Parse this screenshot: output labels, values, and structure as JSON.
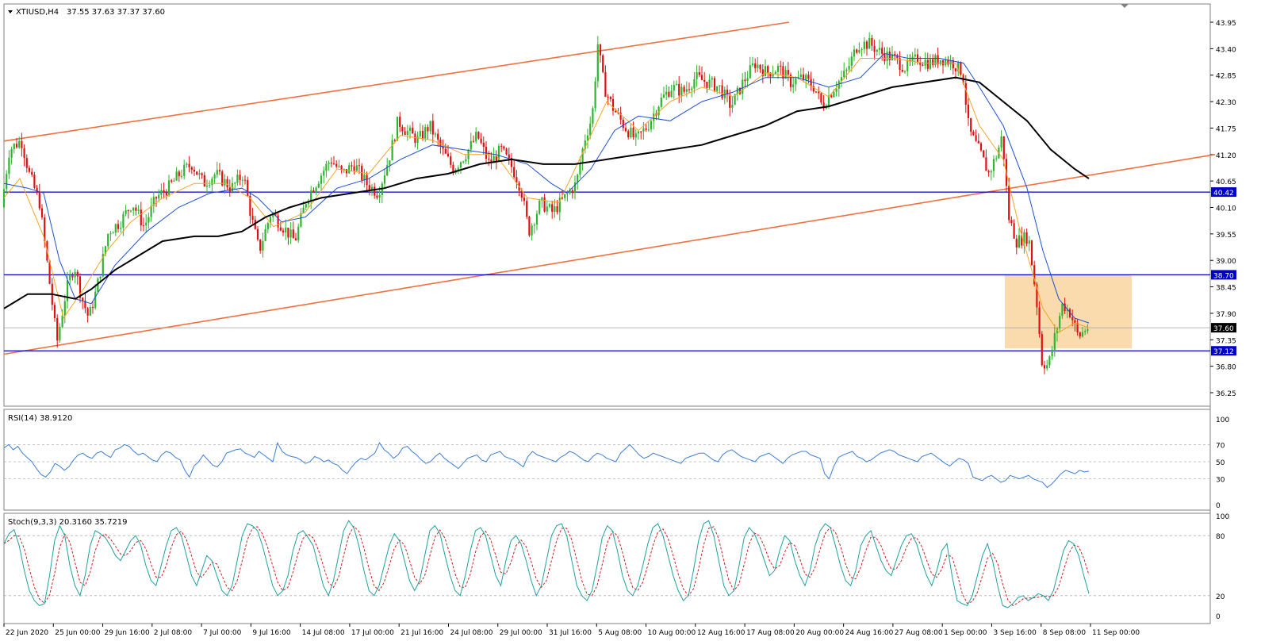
{
  "symbol_label": "XTIUSD,H4",
  "ohlc_label": "37.55 37.63 37.37 37.60",
  "price_axis": {
    "min": 36.25,
    "max": 43.95,
    "ticks": [
      "43.95",
      "43.40",
      "42.85",
      "42.30",
      "41.75",
      "41.20",
      "40.65",
      "40.10",
      "39.55",
      "39.00",
      "38.45",
      "37.90",
      "37.35",
      "36.80",
      "36.25"
    ]
  },
  "levels": [
    {
      "name": "resistance-upper",
      "value": 40.42,
      "label": "40.42",
      "color": "#0000cc"
    },
    {
      "name": "resistance-lower",
      "value": 38.7,
      "label": "38.70",
      "color": "#0000cc"
    },
    {
      "name": "support",
      "value": 37.12,
      "label": "37.12",
      "color": "#0000cc"
    }
  ],
  "current_price": {
    "value": 37.6,
    "label": "37.60"
  },
  "rsi": {
    "label": "RSI(14) 38.9120",
    "ticks": [
      "100",
      "70",
      "50",
      "30",
      "0"
    ]
  },
  "stoch": {
    "label": "Stoch(9,3,3) 20.3160 35.7219",
    "ticks": [
      "100",
      "80",
      "20",
      "0"
    ]
  },
  "time_axis": [
    "22 Jun 2020",
    "25 Jun 00:00",
    "29 Jun 16:00",
    "2 Jul 08:00",
    "7 Jul 00:00",
    "9 Jul 16:00",
    "14 Jul 08:00",
    "17 Jul 00:00",
    "21 Jul 16:00",
    "24 Jul 08:00",
    "29 Jul 00:00",
    "31 Jul 16:00",
    "5 Aug 08:00",
    "10 Aug 00:00",
    "12 Aug 16:00",
    "17 Aug 08:00",
    "20 Aug 00:00",
    "24 Aug 16:00",
    "27 Aug 08:00",
    "1 Sep 00:00",
    "3 Sep 16:00",
    "8 Sep 08:00",
    "11 Sep 00:00"
  ],
  "colors": {
    "bull": "#2db52d",
    "bear": "#e01010",
    "ma_fast": "#f5a623",
    "ma_mid": "#1f4fd8",
    "ma_slow": "#000000",
    "channel": "#f07040",
    "level": "#0000cc",
    "zone": "#f8d5a0",
    "rsi_line": "#3b7fd6",
    "stoch_main": "#20a0a0",
    "stoch_signal": "#d02020"
  },
  "chart_data": {
    "type": "line",
    "price_path": [
      [
        0,
        40.1
      ],
      [
        10,
        41.3
      ],
      [
        25,
        41.5
      ],
      [
        35,
        40.8
      ],
      [
        48,
        40.2
      ],
      [
        58,
        38.9
      ],
      [
        70,
        37.3
      ],
      [
        82,
        38.4
      ],
      [
        92,
        38.9
      ],
      [
        100,
        38.3
      ],
      [
        110,
        37.8
      ],
      [
        120,
        38.4
      ],
      [
        135,
        39.6
      ],
      [
        150,
        39.8
      ],
      [
        165,
        40.2
      ],
      [
        180,
        39.7
      ],
      [
        195,
        40.3
      ],
      [
        210,
        40.5
      ],
      [
        225,
        40.8
      ],
      [
        240,
        41.0
      ],
      [
        255,
        40.6
      ],
      [
        270,
        40.8
      ],
      [
        290,
        40.5
      ],
      [
        305,
        40.8
      ],
      [
        315,
        39.9
      ],
      [
        325,
        39.2
      ],
      [
        340,
        40.0
      ],
      [
        355,
        39.7
      ],
      [
        370,
        39.4
      ],
      [
        385,
        40.3
      ],
      [
        400,
        40.7
      ],
      [
        415,
        41.1
      ],
      [
        430,
        40.8
      ],
      [
        445,
        41.0
      ],
      [
        460,
        40.6
      ],
      [
        475,
        40.4
      ],
      [
        490,
        41.2
      ],
      [
        500,
        41.9
      ],
      [
        510,
        41.7
      ],
      [
        525,
        41.5
      ],
      [
        540,
        41.8
      ],
      [
        555,
        41.3
      ],
      [
        570,
        40.9
      ],
      [
        585,
        41.2
      ],
      [
        600,
        41.6
      ],
      [
        615,
        41.0
      ],
      [
        630,
        41.3
      ],
      [
        645,
        40.9
      ],
      [
        655,
        40.5
      ],
      [
        665,
        39.6
      ],
      [
        680,
        40.2
      ],
      [
        695,
        40.0
      ],
      [
        710,
        40.3
      ],
      [
        725,
        40.6
      ],
      [
        735,
        41.5
      ],
      [
        745,
        42.0
      ],
      [
        752,
        43.5
      ],
      [
        760,
        42.6
      ],
      [
        770,
        42.2
      ],
      [
        785,
        41.8
      ],
      [
        800,
        41.5
      ],
      [
        815,
        41.8
      ],
      [
        830,
        42.3
      ],
      [
        845,
        42.6
      ],
      [
        860,
        42.5
      ],
      [
        875,
        42.8
      ],
      [
        890,
        42.7
      ],
      [
        905,
        42.6
      ],
      [
        920,
        42.2
      ],
      [
        935,
        42.7
      ],
      [
        950,
        43.1
      ],
      [
        965,
        42.9
      ],
      [
        980,
        43.0
      ],
      [
        995,
        42.7
      ],
      [
        1010,
        42.8
      ],
      [
        1025,
        42.6
      ],
      [
        1035,
        42.2
      ],
      [
        1050,
        42.6
      ],
      [
        1065,
        42.9
      ],
      [
        1080,
        43.5
      ],
      [
        1095,
        43.5
      ],
      [
        1110,
        43.3
      ],
      [
        1125,
        43.2
      ],
      [
        1140,
        43.0
      ],
      [
        1155,
        43.2
      ],
      [
        1170,
        43.1
      ],
      [
        1185,
        43.2
      ],
      [
        1200,
        43.1
      ],
      [
        1212,
        42.9
      ],
      [
        1220,
        41.7
      ],
      [
        1235,
        41.2
      ],
      [
        1245,
        40.8
      ],
      [
        1255,
        41.2
      ],
      [
        1262,
        41.6
      ],
      [
        1270,
        39.9
      ],
      [
        1280,
        39.4
      ],
      [
        1295,
        39.5
      ],
      [
        1305,
        38.2
      ],
      [
        1312,
        36.9
      ],
      [
        1320,
        36.8
      ],
      [
        1328,
        37.4
      ],
      [
        1338,
        38.1
      ],
      [
        1348,
        37.9
      ],
      [
        1358,
        37.4
      ],
      [
        1368,
        37.6
      ]
    ],
    "ma_fast": [
      [
        0,
        40.3
      ],
      [
        20,
        40.7
      ],
      [
        50,
        39.5
      ],
      [
        75,
        37.8
      ],
      [
        100,
        38.4
      ],
      [
        130,
        39.2
      ],
      [
        160,
        39.8
      ],
      [
        200,
        40.3
      ],
      [
        240,
        40.6
      ],
      [
        280,
        40.6
      ],
      [
        310,
        40.3
      ],
      [
        340,
        39.7
      ],
      [
        380,
        40.0
      ],
      [
        420,
        40.9
      ],
      [
        460,
        40.8
      ],
      [
        500,
        41.6
      ],
      [
        540,
        41.5
      ],
      [
        580,
        41.2
      ],
      [
        620,
        41.2
      ],
      [
        660,
        40.3
      ],
      [
        700,
        40.2
      ],
      [
        740,
        41.6
      ],
      [
        760,
        42.3
      ],
      [
        800,
        41.7
      ],
      [
        840,
        42.3
      ],
      [
        880,
        42.6
      ],
      [
        920,
        42.4
      ],
      [
        960,
        42.9
      ],
      [
        1000,
        42.8
      ],
      [
        1040,
        42.4
      ],
      [
        1080,
        43.2
      ],
      [
        1120,
        43.2
      ],
      [
        1160,
        43.1
      ],
      [
        1200,
        43.1
      ],
      [
        1230,
        41.8
      ],
      [
        1260,
        41.1
      ],
      [
        1280,
        39.7
      ],
      [
        1310,
        38.0
      ],
      [
        1330,
        37.5
      ],
      [
        1350,
        37.7
      ],
      [
        1368,
        37.6
      ]
    ],
    "ma_mid": [
      [
        0,
        40.6
      ],
      [
        30,
        40.5
      ],
      [
        50,
        40.4
      ],
      [
        70,
        39.0
      ],
      [
        90,
        38.2
      ],
      [
        110,
        38.1
      ],
      [
        140,
        38.9
      ],
      [
        180,
        39.6
      ],
      [
        220,
        40.1
      ],
      [
        260,
        40.4
      ],
      [
        300,
        40.5
      ],
      [
        320,
        40.3
      ],
      [
        350,
        39.8
      ],
      [
        380,
        39.9
      ],
      [
        420,
        40.5
      ],
      [
        460,
        40.7
      ],
      [
        500,
        41.1
      ],
      [
        540,
        41.4
      ],
      [
        580,
        41.3
      ],
      [
        620,
        41.2
      ],
      [
        660,
        41.0
      ],
      [
        690,
        40.6
      ],
      [
        710,
        40.4
      ],
      [
        740,
        40.9
      ],
      [
        770,
        41.7
      ],
      [
        800,
        42.0
      ],
      [
        840,
        41.9
      ],
      [
        880,
        42.3
      ],
      [
        920,
        42.5
      ],
      [
        960,
        42.8
      ],
      [
        1000,
        42.8
      ],
      [
        1040,
        42.6
      ],
      [
        1080,
        42.8
      ],
      [
        1110,
        43.3
      ],
      [
        1140,
        43.2
      ],
      [
        1180,
        43.2
      ],
      [
        1210,
        43.1
      ],
      [
        1230,
        42.6
      ],
      [
        1260,
        41.8
      ],
      [
        1290,
        40.5
      ],
      [
        1310,
        39.2
      ],
      [
        1330,
        38.2
      ],
      [
        1350,
        37.8
      ],
      [
        1368,
        37.7
      ]
    ],
    "ma_slow": [
      [
        0,
        38.0
      ],
      [
        30,
        38.3
      ],
      [
        60,
        38.3
      ],
      [
        90,
        38.2
      ],
      [
        110,
        38.4
      ],
      [
        140,
        38.8
      ],
      [
        170,
        39.1
      ],
      [
        200,
        39.4
      ],
      [
        240,
        39.5
      ],
      [
        270,
        39.5
      ],
      [
        300,
        39.6
      ],
      [
        330,
        39.9
      ],
      [
        360,
        40.1
      ],
      [
        400,
        40.3
      ],
      [
        440,
        40.4
      ],
      [
        480,
        40.5
      ],
      [
        520,
        40.7
      ],
      [
        560,
        40.8
      ],
      [
        600,
        41.0
      ],
      [
        640,
        41.1
      ],
      [
        680,
        41.0
      ],
      [
        720,
        41.0
      ],
      [
        760,
        41.1
      ],
      [
        800,
        41.2
      ],
      [
        840,
        41.3
      ],
      [
        880,
        41.4
      ],
      [
        920,
        41.6
      ],
      [
        960,
        41.8
      ],
      [
        1000,
        42.1
      ],
      [
        1040,
        42.2
      ],
      [
        1080,
        42.4
      ],
      [
        1120,
        42.6
      ],
      [
        1160,
        42.7
      ],
      [
        1200,
        42.8
      ],
      [
        1230,
        42.7
      ],
      [
        1260,
        42.3
      ],
      [
        1290,
        41.9
      ],
      [
        1320,
        41.3
      ],
      [
        1350,
        40.9
      ],
      [
        1368,
        40.7
      ]
    ],
    "channel_upper": [
      [
        0,
        41.48
      ],
      [
        990,
        43.95
      ]
    ],
    "channel_lower": [
      [
        0,
        37.05
      ],
      [
        1527,
        41.2
      ]
    ],
    "zone": {
      "x_start": 1262,
      "x_end": 1422,
      "top": 38.7,
      "bottom": 37.17
    },
    "rsi_values": [
      66,
      70,
      64,
      68,
      60,
      55,
      50,
      42,
      35,
      32,
      38,
      48,
      45,
      40,
      44,
      52,
      58,
      60,
      56,
      54,
      60,
      62,
      58,
      55,
      64,
      66,
      70,
      68,
      62,
      58,
      60,
      56,
      52,
      50,
      58,
      62,
      60,
      55,
      52,
      40,
      32,
      45,
      50,
      58,
      52,
      46,
      44,
      50,
      60,
      62,
      64,
      65,
      60,
      58,
      55,
      62,
      58,
      54,
      50,
      72,
      62,
      58,
      56,
      55,
      52,
      48,
      50,
      56,
      54,
      50,
      52,
      48,
      46,
      40,
      36,
      44,
      50,
      54,
      52,
      56,
      60,
      72,
      64,
      60,
      54,
      58,
      66,
      68,
      62,
      58,
      52,
      48,
      50,
      56,
      60,
      54,
      50,
      46,
      42,
      48,
      54,
      56,
      58,
      52,
      50,
      58,
      60,
      62,
      56,
      54,
      52,
      48,
      44,
      56,
      62,
      58,
      56,
      54,
      52,
      50,
      55,
      58,
      62,
      60,
      56,
      52,
      50,
      56,
      60,
      58,
      54,
      52,
      50,
      60,
      65,
      70,
      64,
      58,
      54,
      56,
      60,
      58,
      56,
      54,
      52,
      50,
      48,
      54,
      56,
      58,
      60,
      60,
      56,
      52,
      50,
      58,
      62,
      64,
      60,
      56,
      54,
      52,
      50,
      56,
      58,
      60,
      56,
      52,
      48,
      54,
      58,
      60,
      62,
      62,
      58,
      56,
      54,
      36,
      30,
      45,
      55,
      58,
      60,
      62,
      56,
      54,
      50,
      52,
      56,
      60,
      62,
      64,
      62,
      58,
      56,
      54,
      52,
      50,
      56,
      58,
      60,
      56,
      52,
      48,
      45,
      50,
      54,
      52,
      48,
      32,
      30,
      28,
      32,
      34,
      30,
      26,
      28,
      34,
      32,
      30,
      32,
      34,
      30,
      28,
      26,
      20,
      24,
      30,
      36,
      40,
      38,
      36,
      40,
      38,
      39
    ],
    "stoch_values": [
      72,
      82,
      86,
      70,
      45,
      25,
      15,
      10,
      12,
      40,
      75,
      90,
      80,
      50,
      30,
      20,
      40,
      70,
      85,
      82,
      78,
      70,
      60,
      55,
      65,
      75,
      80,
      70,
      50,
      35,
      30,
      50,
      70,
      85,
      88,
      80,
      60,
      40,
      30,
      45,
      60,
      55,
      40,
      25,
      20,
      30,
      55,
      80,
      92,
      90,
      85,
      70,
      50,
      30,
      20,
      25,
      40,
      65,
      82,
      85,
      78,
      70,
      50,
      30,
      20,
      35,
      60,
      85,
      95,
      88,
      70,
      45,
      25,
      20,
      30,
      50,
      70,
      82,
      75,
      55,
      35,
      25,
      35,
      60,
      85,
      90,
      82,
      60,
      40,
      25,
      20,
      40,
      65,
      85,
      88,
      80,
      60,
      40,
      30,
      55,
      75,
      80,
      72,
      55,
      35,
      20,
      30,
      55,
      80,
      90,
      92,
      80,
      55,
      30,
      20,
      15,
      25,
      50,
      78,
      90,
      85,
      65,
      40,
      25,
      20,
      30,
      50,
      72,
      88,
      92,
      80,
      60,
      40,
      25,
      15,
      20,
      45,
      75,
      92,
      95,
      80,
      55,
      30,
      20,
      25,
      50,
      78,
      88,
      82,
      70,
      55,
      40,
      45,
      65,
      80,
      75,
      55,
      40,
      30,
      45,
      70,
      85,
      92,
      88,
      70,
      50,
      35,
      30,
      45,
      70,
      80,
      85,
      70,
      55,
      45,
      40,
      55,
      70,
      80,
      82,
      72,
      55,
      40,
      30,
      45,
      65,
      72,
      40,
      15,
      12,
      10,
      20,
      40,
      60,
      72,
      55,
      30,
      10,
      8,
      12,
      18,
      20,
      15,
      18,
      22,
      20,
      15,
      25,
      45,
      65,
      75,
      72,
      60,
      40,
      22
    ]
  }
}
